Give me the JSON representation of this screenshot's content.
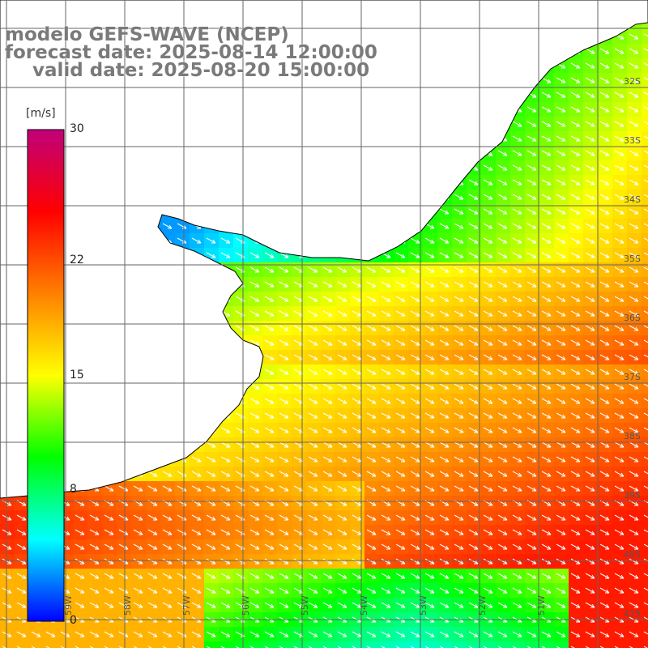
{
  "title": {
    "line1": "modelo GEFS-WAVE (NCEP)",
    "line2": "forecast date: 2025-08-14 12:00:00",
    "line3": "valid date: 2025-08-20 15:00:00"
  },
  "colorbar": {
    "unit": "[m/s]",
    "ticks": [
      "0",
      "8",
      "15",
      "22",
      "30"
    ],
    "tick_values": [
      0,
      8,
      15,
      22,
      30
    ],
    "range": [
      0,
      30
    ],
    "colors": [
      "#0000ff",
      "#00ffff",
      "#00ff00",
      "#ffff00",
      "#ff8000",
      "#ff0000",
      "#c0007a"
    ]
  },
  "map": {
    "lat_labels": [
      "32S",
      "33S",
      "34S",
      "35S",
      "36S",
      "37S",
      "38S",
      "39S",
      "40S",
      "41S"
    ],
    "lon_labels": [
      "59W",
      "58W",
      "57W",
      "56W",
      "55W",
      "54W",
      "53W",
      "52W",
      "51W"
    ],
    "land_color": "#ffffff",
    "arrow_color": "#ffffff"
  }
}
